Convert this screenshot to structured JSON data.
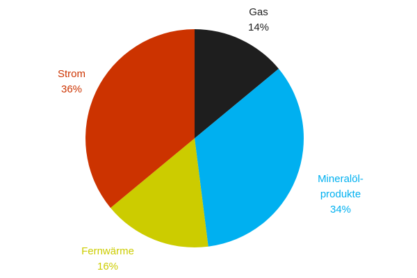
{
  "chart_data": {
    "type": "pie",
    "categories": [
      "Gas",
      "Mineralöl-\nprodukte",
      "Fernwärme",
      "Strom"
    ],
    "values": [
      14,
      34,
      16,
      36
    ],
    "value_labels": [
      "14%",
      "34%",
      "16%",
      "36%"
    ],
    "colors": [
      "#1e1e1e",
      "#00b0f0",
      "#cccc00",
      "#cc3300"
    ],
    "label_colors": [
      "#1e1e1e",
      "#00b0f0",
      "#cccc00",
      "#cc3300"
    ]
  }
}
